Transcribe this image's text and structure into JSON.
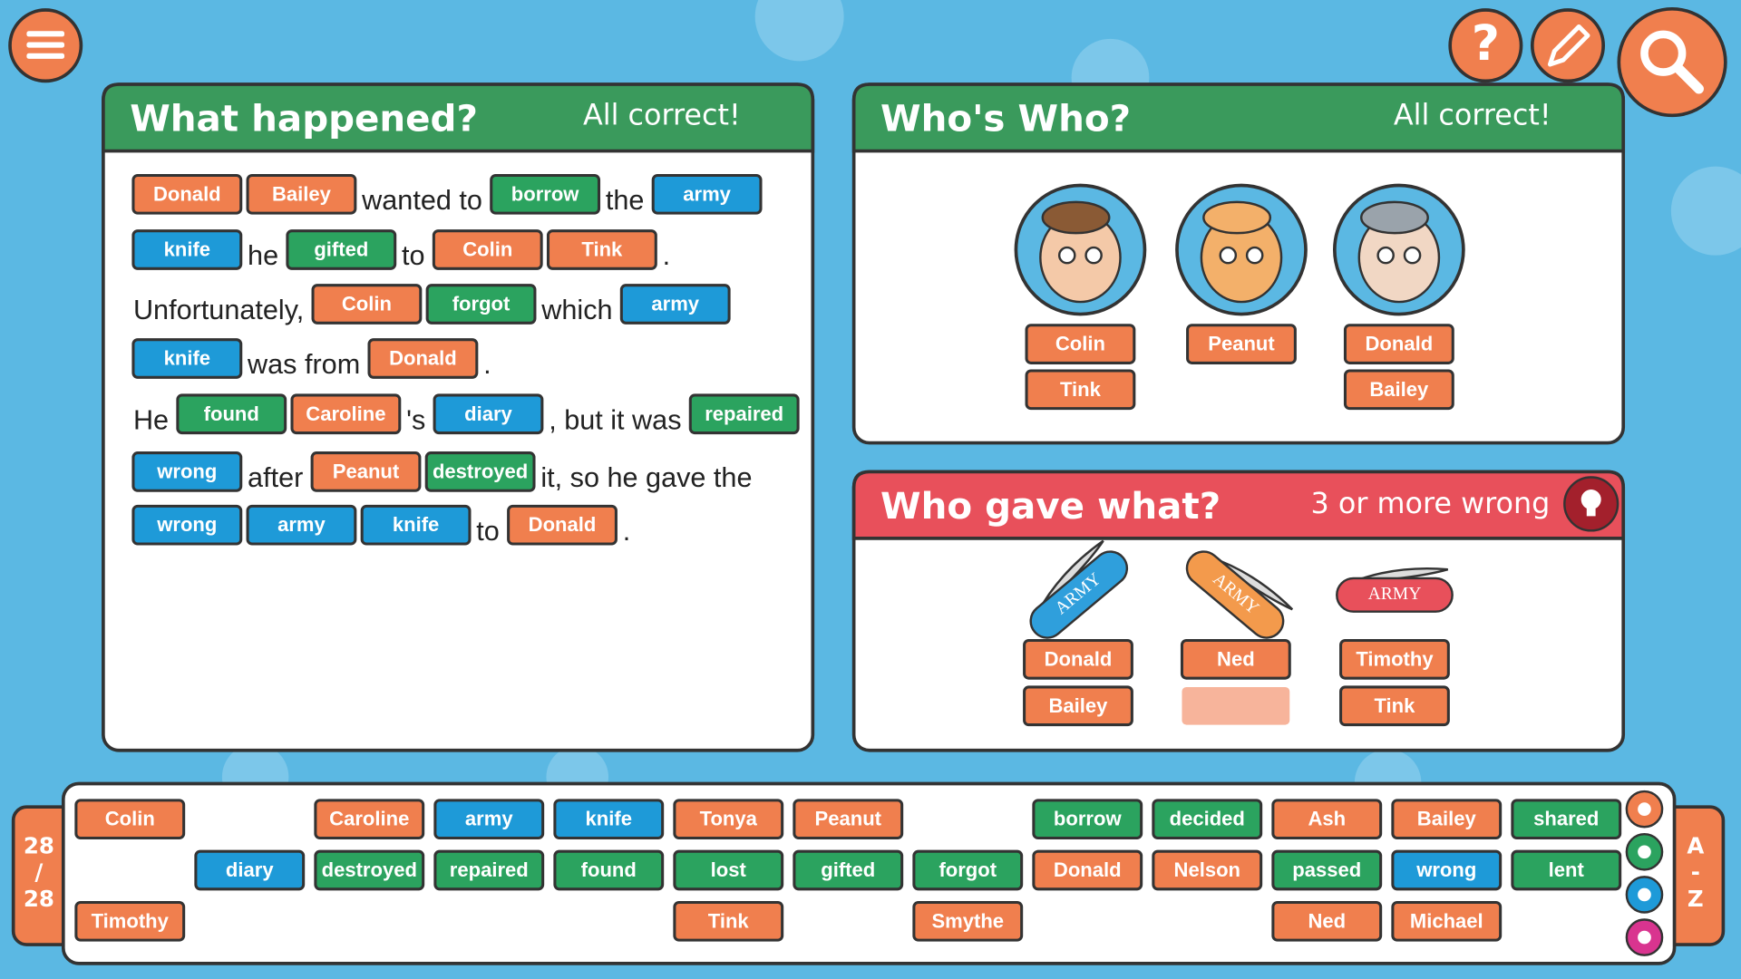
{
  "toolbar": {
    "help": "?"
  },
  "story": {
    "title": "What happened?",
    "status": "All correct!",
    "lines": [
      [
        {
          "text": "Donald",
          "color": "#f07f4e"
        },
        {
          "text": "Bailey",
          "color": "#f07f4e"
        },
        "wanted to",
        {
          "text": "borrow",
          "color": "#2ba35f"
        },
        "the",
        {
          "text": "army",
          "color": "#1e9ad8"
        }
      ],
      [
        {
          "text": "knife",
          "color": "#1e9ad8"
        },
        "he",
        {
          "text": "gifted",
          "color": "#2ba35f"
        },
        "to",
        {
          "text": "Colin",
          "color": "#f07f4e"
        },
        {
          "text": "Tink",
          "color": "#f07f4e"
        },
        "."
      ],
      [
        "Unfortunately,",
        {
          "text": "Colin",
          "color": "#f07f4e"
        },
        {
          "text": "forgot",
          "color": "#2ba35f"
        },
        "which",
        {
          "text": "army",
          "color": "#1e9ad8"
        }
      ],
      [
        {
          "text": "knife",
          "color": "#1e9ad8"
        },
        "was from",
        {
          "text": "Donald",
          "color": "#f07f4e"
        },
        "."
      ],
      [
        "He",
        {
          "text": "found",
          "color": "#2ba35f"
        },
        {
          "text": "Caroline",
          "color": "#f07f4e"
        },
        "'s",
        {
          "text": "diary",
          "color": "#1e9ad8"
        },
        ", but it was",
        {
          "text": "repaired",
          "color": "#2ba35f"
        }
      ],
      [
        {
          "text": "wrong",
          "color": "#1e9ad8"
        },
        "after",
        {
          "text": "Peanut",
          "color": "#f07f4e"
        },
        {
          "text": "destroyed",
          "color": "#2ba35f"
        },
        "it, so he gave the"
      ],
      [
        {
          "text": "wrong",
          "color": "#1e9ad8"
        },
        {
          "text": "army",
          "color": "#1e9ad8"
        },
        {
          "text": "knife",
          "color": "#1e9ad8"
        },
        "to",
        {
          "text": "Donald",
          "color": "#f07f4e"
        },
        "."
      ]
    ]
  },
  "whos_who": {
    "title": "Who's Who?",
    "status": "All correct!",
    "characters": [
      {
        "tiles": [
          "Colin",
          "Tink"
        ]
      },
      {
        "tiles": [
          "Peanut"
        ]
      },
      {
        "tiles": [
          "Donald",
          "Bailey"
        ]
      }
    ]
  },
  "who_gave_what": {
    "title": "Who gave what?",
    "status": "3 or more wrong",
    "items": [
      {
        "label": "ARMY",
        "color": "#2f9fdc",
        "tiles": [
          "Donald",
          "Bailey"
        ]
      },
      {
        "label": "ARMY",
        "color": "#f39a4c",
        "tiles": [
          "Ned",
          null
        ]
      },
      {
        "label": "ARMY",
        "color": "#e8505b",
        "tiles": [
          "Timothy",
          "Tink"
        ]
      }
    ]
  },
  "bank": {
    "counter": [
      "28",
      "/",
      "28"
    ],
    "sort": [
      "A",
      "-",
      "Z"
    ],
    "rows": [
      [
        {
          "text": "Colin",
          "color": "#f07f4e"
        },
        null,
        {
          "text": "Caroline",
          "color": "#f07f4e"
        },
        {
          "text": "army",
          "color": "#1e9ad8"
        },
        {
          "text": "knife",
          "color": "#1e9ad8"
        },
        {
          "text": "Tonya",
          "color": "#f07f4e"
        },
        {
          "text": "Peanut",
          "color": "#f07f4e"
        },
        null,
        {
          "text": "borrow",
          "color": "#2ba35f"
        },
        {
          "text": "decided",
          "color": "#2ba35f"
        },
        {
          "text": "Ash",
          "color": "#f07f4e"
        },
        {
          "text": "Bailey",
          "color": "#f07f4e"
        },
        {
          "text": "shared",
          "color": "#2ba35f"
        }
      ],
      [
        null,
        {
          "text": "diary",
          "color": "#1e9ad8"
        },
        {
          "text": "destroyed",
          "color": "#2ba35f"
        },
        {
          "text": "repaired",
          "color": "#2ba35f"
        },
        {
          "text": "found",
          "color": "#2ba35f"
        },
        {
          "text": "lost",
          "color": "#2ba35f"
        },
        {
          "text": "gifted",
          "color": "#2ba35f"
        },
        {
          "text": "forgot",
          "color": "#2ba35f"
        },
        {
          "text": "Donald",
          "color": "#f07f4e"
        },
        {
          "text": "Nelson",
          "color": "#f07f4e"
        },
        {
          "text": "passed",
          "color": "#2ba35f"
        },
        {
          "text": "wrong",
          "color": "#1e9ad8"
        },
        {
          "text": "lent",
          "color": "#2ba35f"
        }
      ],
      [
        {
          "text": "Timothy",
          "color": "#f07f4e"
        },
        null,
        null,
        null,
        null,
        {
          "text": "Tink",
          "color": "#f07f4e"
        },
        null,
        {
          "text": "Smythe",
          "color": "#f07f4e"
        },
        null,
        null,
        {
          "text": "Ned",
          "color": "#f07f4e"
        },
        {
          "text": "Michael",
          "color": "#f07f4e"
        },
        null
      ]
    ]
  }
}
